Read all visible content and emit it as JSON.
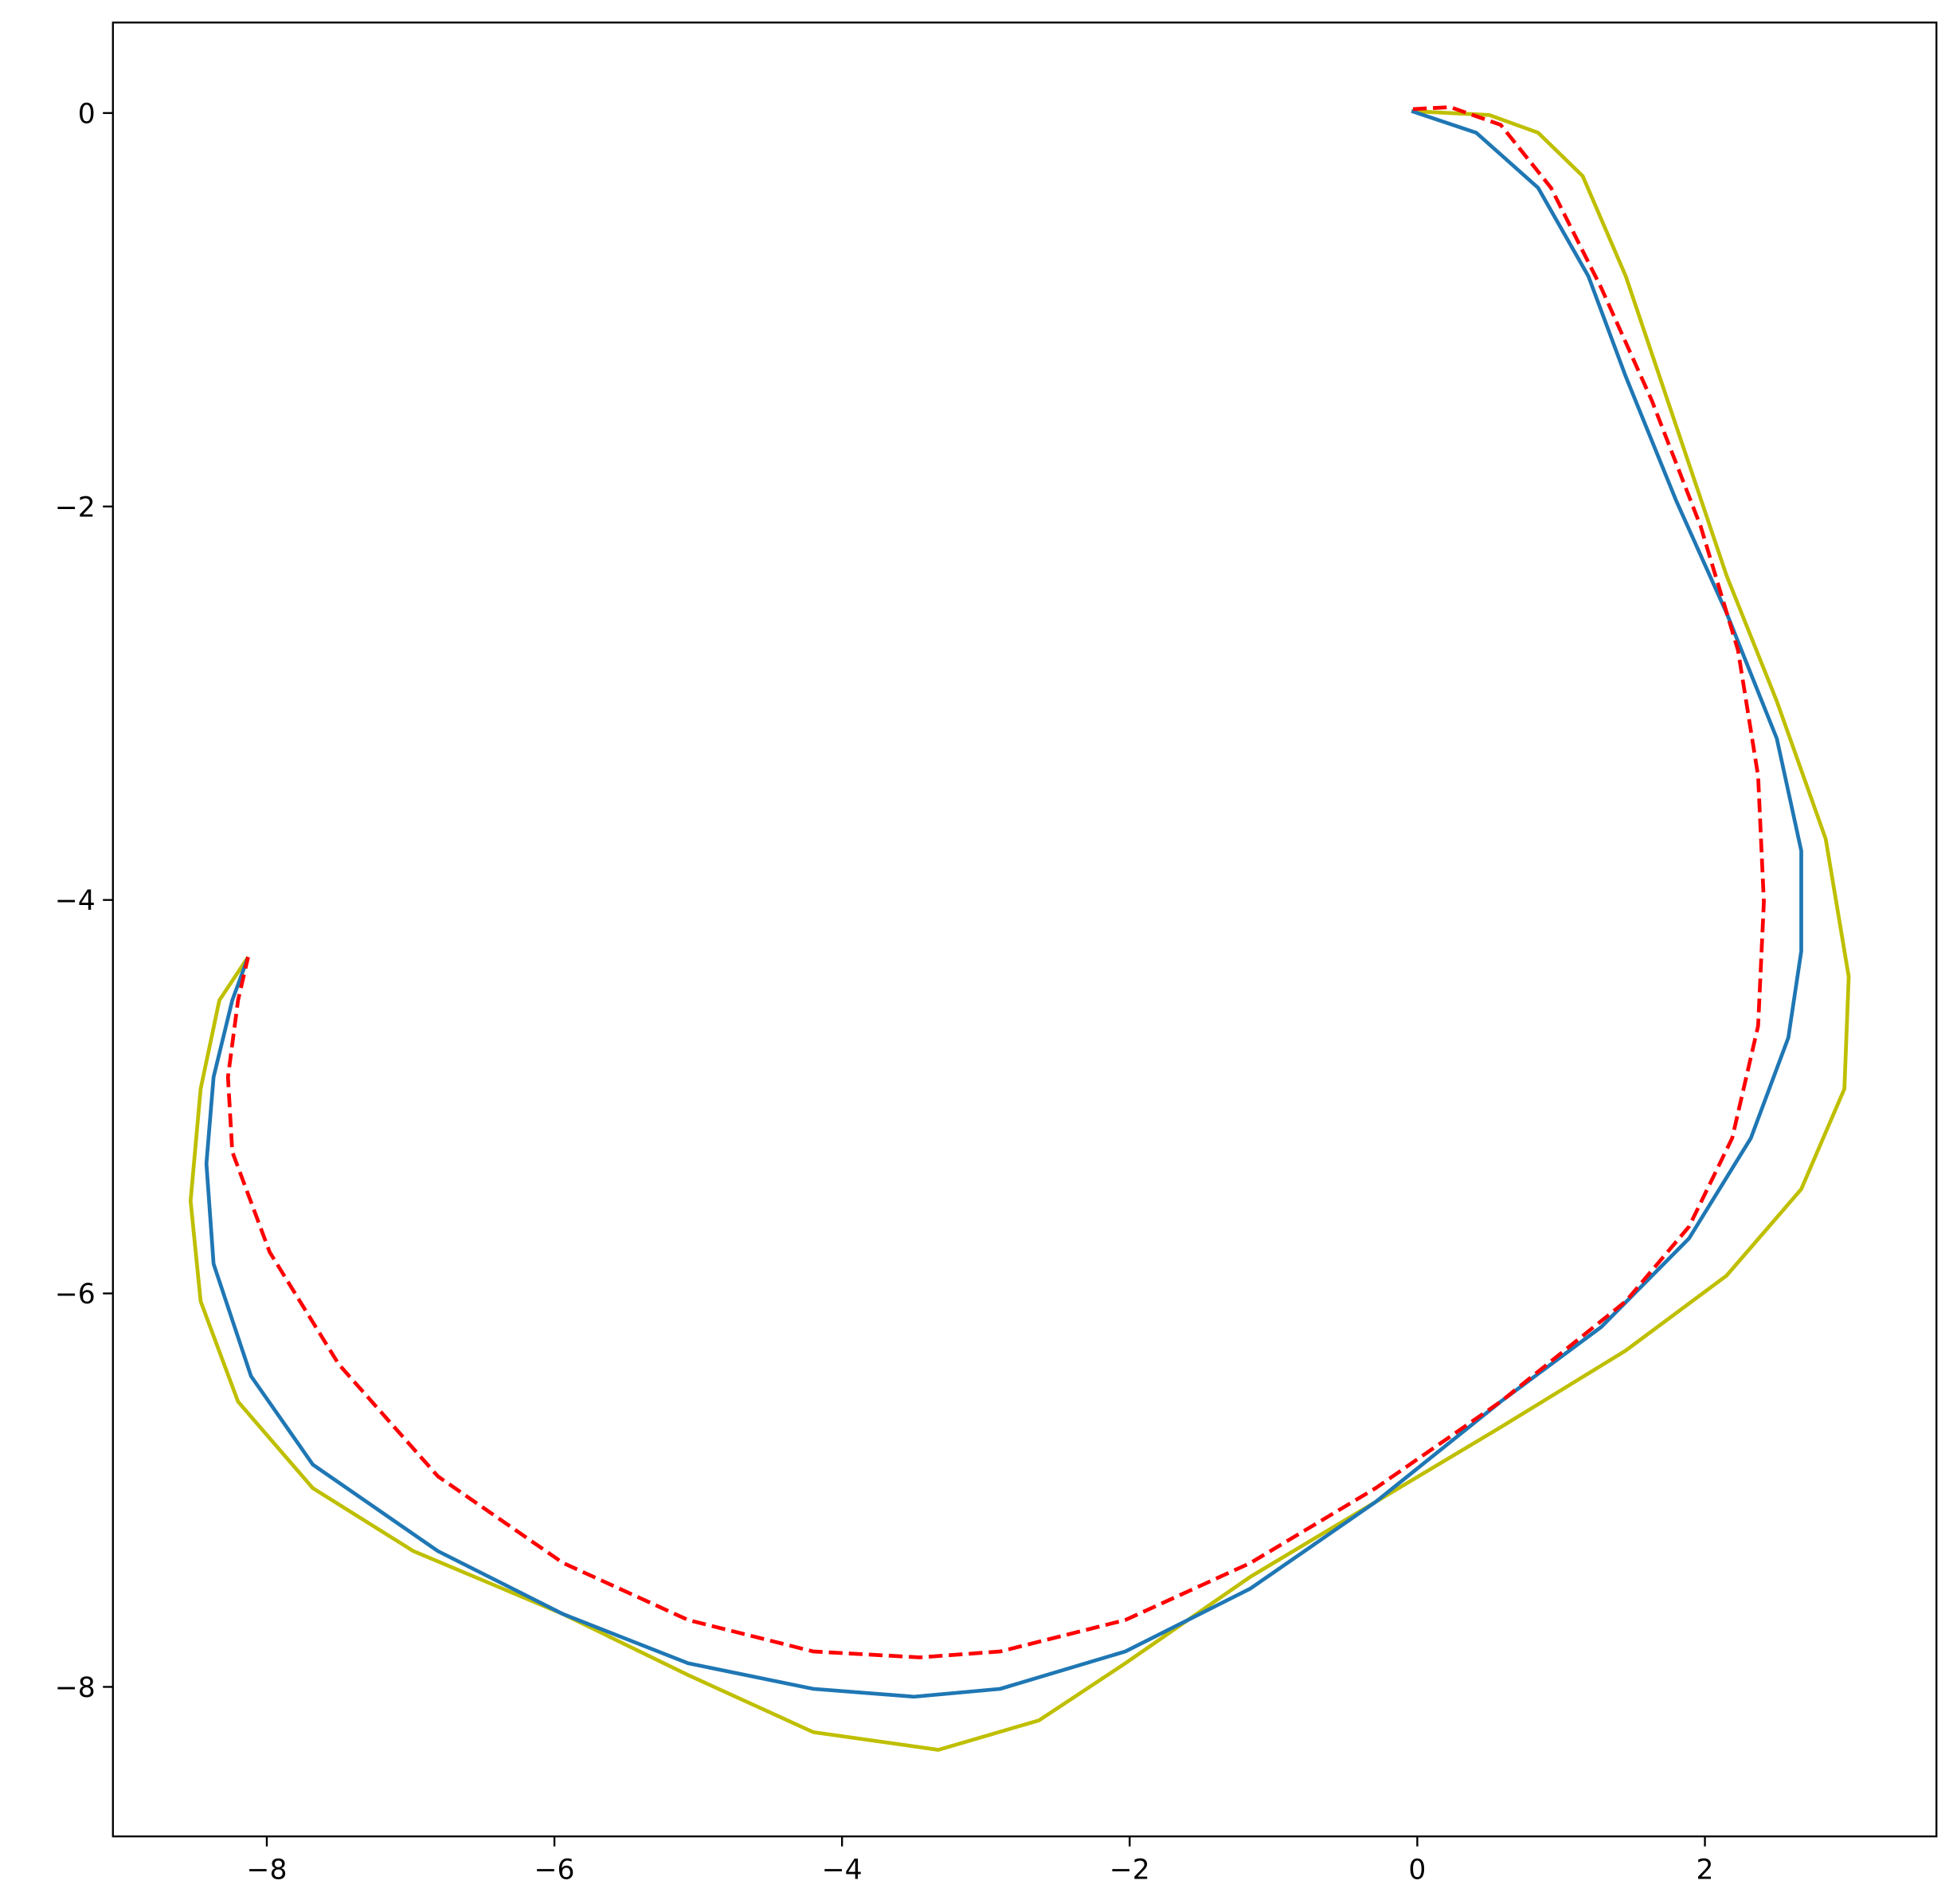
{
  "chart_data": {
    "type": "line",
    "xlim": [
      -9.07,
      3.61
    ],
    "ylim": [
      -8.76,
      0.46
    ],
    "xticks": [
      {
        "value": -8,
        "label": "−8"
      },
      {
        "value": -6,
        "label": "−6"
      },
      {
        "value": -4,
        "label": "−4"
      },
      {
        "value": -2,
        "label": "−2"
      },
      0,
      2
    ],
    "yticks": [
      {
        "value": -8,
        "label": "−8"
      },
      {
        "value": -6,
        "label": "−6"
      },
      {
        "value": -4,
        "label": "−4"
      },
      {
        "value": -2,
        "label": "−2"
      },
      0
    ],
    "series": [
      {
        "color": "#bfbf00",
        "dash": false,
        "x": [
          -0.04,
          0.5,
          0.84,
          1.15,
          1.45,
          1.8,
          2.15,
          2.5,
          2.84,
          3.0,
          2.97,
          2.67,
          2.15,
          1.45,
          0.58,
          -0.29,
          -1.16,
          -2.03,
          -2.63,
          -3.33,
          -4.2,
          -5.07,
          -5.94,
          -6.98,
          -7.68,
          -8.2,
          -8.46,
          -8.53,
          -8.46,
          -8.33,
          -8.13
        ],
        "values": [
          0.01,
          -0.01,
          -0.1,
          -0.32,
          -0.83,
          -1.59,
          -2.35,
          -2.99,
          -3.69,
          -4.39,
          -4.96,
          -5.47,
          -5.91,
          -6.29,
          -6.68,
          -7.06,
          -7.44,
          -7.88,
          -8.17,
          -8.32,
          -8.23,
          -7.94,
          -7.63,
          -7.31,
          -6.99,
          -6.55,
          -6.04,
          -5.53,
          -4.96,
          -4.51,
          -4.29
        ]
      },
      {
        "color": "#1f77b4",
        "dash": false,
        "x": [
          -0.04,
          0.41,
          0.84,
          1.19,
          1.45,
          1.8,
          2.15,
          2.5,
          2.67,
          2.67,
          2.58,
          2.32,
          1.89,
          1.28,
          0.58,
          -0.29,
          -1.16,
          -2.03,
          -2.9,
          -3.5,
          -4.2,
          -5.07,
          -5.94,
          -6.81,
          -7.68,
          -8.11,
          -8.37,
          -8.42,
          -8.37,
          -8.24,
          -8.13
        ],
        "values": [
          0.01,
          -0.1,
          -0.38,
          -0.83,
          -1.34,
          -1.97,
          -2.54,
          -3.18,
          -3.75,
          -4.26,
          -4.7,
          -5.21,
          -5.72,
          -6.17,
          -6.55,
          -7.06,
          -7.5,
          -7.82,
          -8.01,
          -8.05,
          -8.01,
          -7.88,
          -7.63,
          -7.31,
          -6.87,
          -6.42,
          -5.85,
          -5.34,
          -4.9,
          -4.51,
          -4.29
        ]
      },
      {
        "color": "#ff0000",
        "dash": true,
        "x": [
          -0.03,
          0.23,
          0.58,
          0.93,
          1.28,
          1.63,
          1.97,
          2.23,
          2.37,
          2.41,
          2.37,
          2.19,
          1.89,
          1.45,
          0.58,
          -0.29,
          -1.16,
          -2.03,
          -2.9,
          -3.46,
          -4.2,
          -5.07,
          -5.94,
          -6.81,
          -7.5,
          -7.98,
          -8.24,
          -8.27,
          -8.2,
          -8.13
        ],
        "values": [
          0.02,
          0.03,
          -0.06,
          -0.38,
          -0.89,
          -1.46,
          -2.1,
          -2.73,
          -3.37,
          -4.01,
          -4.64,
          -5.21,
          -5.66,
          -6.04,
          -6.55,
          -6.99,
          -7.37,
          -7.66,
          -7.82,
          -7.85,
          -7.82,
          -7.66,
          -7.37,
          -6.93,
          -6.36,
          -5.79,
          -5.28,
          -4.9,
          -4.51,
          -4.29
        ]
      }
    ]
  }
}
